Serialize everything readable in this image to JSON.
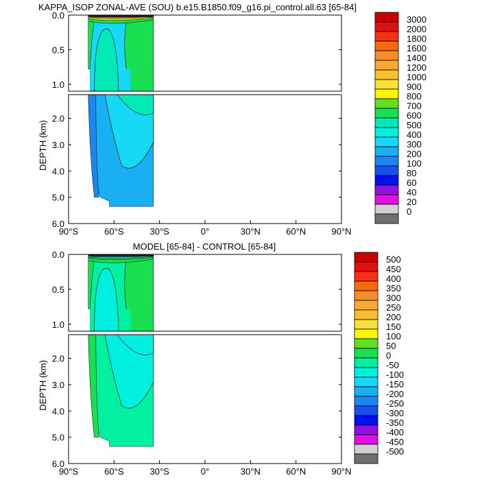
{
  "chart_data": [
    {
      "type": "heatmap",
      "title": "KAPPA_ISOP ZONAL-AVE (SOU) b.e15.B1850.f09_g16.pi_control.all.63 [65-84]",
      "xlabel": "",
      "ylabel": "DEPTH (km)",
      "xlim": [
        -90,
        90
      ],
      "xticks": [
        "90°S",
        "60°S",
        "30°S",
        "0°",
        "30°N",
        "60°N",
        "90°N"
      ],
      "ylim_upper": [
        0.0,
        1.1
      ],
      "yticks_upper": [
        "0.0",
        "0.5",
        "1.0"
      ],
      "ylim_lower": [
        1.1,
        6.0
      ],
      "yticks_lower": [
        "2.0",
        "3.0",
        "4.0",
        "5.0",
        "6.0"
      ],
      "data_extent_lat": [
        -77,
        -34
      ],
      "colorbar_labels": [
        "3000",
        "2000",
        "1800",
        "1600",
        "1400",
        "1200",
        "1000",
        "900",
        "800",
        "700",
        "600",
        "500",
        "400",
        "300",
        "200",
        "100",
        "80",
        "60",
        "40",
        "20",
        "0"
      ],
      "colorbar_colors": [
        "#c80000",
        "#e01010",
        "#f83010",
        "#f86810",
        "#f88c28",
        "#f8a830",
        "#f8c030",
        "#f8e038",
        "#f8f800",
        "#60e020",
        "#18e050",
        "#00eab8",
        "#00f0e0",
        "#18d8f8",
        "#18b0f0",
        "#1888f0",
        "#1850f0",
        "#0010f0",
        "#9010e0",
        "#e010e0",
        "#d0d0d0",
        "#707070"
      ],
      "fields": {
        "upper_bg": "#18d8f8",
        "upper_green": "#18e050",
        "upper_dark": "#00eab8",
        "lower_main": "#18b0f0",
        "lower_top": "#18d8f8",
        "lower_side": "#1888f0"
      }
    },
    {
      "type": "heatmap",
      "title": "MODEL [65-84] - CONTROL [65-84]",
      "xlabel": "",
      "ylabel": "DEPTH (km)",
      "xlim": [
        -90,
        90
      ],
      "xticks": [
        "90°S",
        "60°S",
        "30°S",
        "0°",
        "30°N",
        "60°N",
        "90°N"
      ],
      "ylim_upper": [
        0.0,
        1.1
      ],
      "yticks_upper": [
        "0.0",
        "0.5",
        "1.0"
      ],
      "ylim_lower": [
        1.1,
        6.0
      ],
      "yticks_lower": [
        "2.0",
        "3.0",
        "4.0",
        "5.0",
        "6.0"
      ],
      "data_extent_lat": [
        -77,
        -34
      ],
      "colorbar_labels": [
        "500",
        "450",
        "400",
        "350",
        "300",
        "250",
        "200",
        "150",
        "100",
        "50",
        "0",
        "-50",
        "-100",
        "-150",
        "-200",
        "-250",
        "-300",
        "-350",
        "-400",
        "-450",
        "-500"
      ],
      "colorbar_colors": [
        "#c80000",
        "#e01010",
        "#f83010",
        "#f86810",
        "#f88c28",
        "#f8a830",
        "#f8c030",
        "#f8e038",
        "#f8f800",
        "#60e020",
        "#18e050",
        "#00f0a0",
        "#00f0e0",
        "#18d8f8",
        "#18b0f0",
        "#1888f0",
        "#1850f0",
        "#0010f0",
        "#9010e0",
        "#e010e0",
        "#d0d0d0",
        "#707070"
      ],
      "fields": {
        "upper_bg": "#00f0a0",
        "upper_green": "#18e050",
        "upper_dark": "#00f0e0",
        "lower_main": "#00f0a0",
        "lower_top": "#00f0e0",
        "lower_side": "#18e050"
      }
    }
  ]
}
